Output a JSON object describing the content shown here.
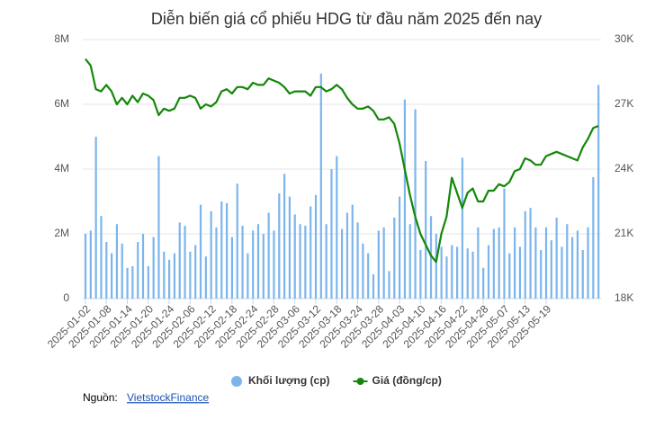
{
  "chart_data": {
    "type": "bar-line",
    "title": "Diễn biến giá cổ phiếu HDG từ đầu năm 2025 đến nay",
    "categories": [
      "2025-01-02",
      null,
      null,
      null,
      "2025-01-08",
      null,
      null,
      null,
      "2025-01-14",
      null,
      null,
      null,
      "2025-01-20",
      null,
      null,
      null,
      "2025-01-24",
      null,
      null,
      null,
      "2025-02-06",
      null,
      null,
      null,
      "2025-02-12",
      null,
      null,
      null,
      "2025-02-18",
      null,
      null,
      null,
      "2025-02-24",
      null,
      null,
      null,
      "2025-02-28",
      null,
      null,
      null,
      "2025-03-06",
      null,
      null,
      null,
      "2025-03-12",
      null,
      null,
      null,
      "2025-03-18",
      null,
      null,
      null,
      "2025-03-24",
      null,
      null,
      null,
      "2025-03-28",
      null,
      null,
      null,
      "2025-04-03",
      null,
      null,
      null,
      "2025-04-10",
      null,
      null,
      null,
      "2025-04-16",
      null,
      null,
      null,
      "2025-04-22",
      null,
      null,
      null,
      "2025-04-28",
      null,
      null,
      null,
      "2025-05-07",
      null,
      null,
      null,
      "2025-05-13",
      null,
      null,
      null,
      "2025-05-19",
      null,
      null,
      null,
      null,
      null,
      null,
      null,
      null,
      null,
      null
    ],
    "series": [
      {
        "name": "Khối lượng (cp)",
        "color": "#7cb5ec",
        "kind": "bar",
        "axis": "y",
        "values": [
          2000000,
          2100000,
          5000000,
          2550000,
          1750000,
          1400000,
          2300000,
          1700000,
          950000,
          1000000,
          1750000,
          2000000,
          1000000,
          1900000,
          4400000,
          1450000,
          1200000,
          1400000,
          2350000,
          2250000,
          1450000,
          1650000,
          2900000,
          1300000,
          2700000,
          2200000,
          3000000,
          2950000,
          1900000,
          3550000,
          2250000,
          1400000,
          2100000,
          2300000,
          2000000,
          2650000,
          2100000,
          3250000,
          3850000,
          3150000,
          2600000,
          2300000,
          2250000,
          2850000,
          3200000,
          6950000,
          2300000,
          4000000,
          4400000,
          2150000,
          2650000,
          2900000,
          2350000,
          1700000,
          1400000,
          750000,
          2100000,
          2200000,
          850000,
          2500000,
          3150000,
          6150000,
          2300000,
          5850000,
          1500000,
          4250000,
          2550000,
          2000000,
          1600000,
          1300000,
          1650000,
          1600000,
          4350000,
          1550000,
          1450000,
          2200000,
          950000,
          1650000,
          2150000,
          2200000,
          3400000,
          1400000,
          2200000,
          1600000,
          2700000,
          2800000,
          2200000,
          1500000,
          2200000,
          1800000,
          2500000,
          1600000,
          2300000,
          1900000,
          2100000,
          1500000,
          2200000,
          3750000,
          6600000
        ]
      },
      {
        "name": "Giá (đồng/cp)",
        "color": "#138808",
        "kind": "line",
        "axis": "y2",
        "values": [
          29100,
          28800,
          27700,
          27600,
          27900,
          27600,
          27000,
          27300,
          27000,
          27400,
          27100,
          27500,
          27400,
          27200,
          26500,
          26800,
          26700,
          26800,
          27300,
          27300,
          27400,
          27300,
          26800,
          27000,
          26900,
          27100,
          27600,
          27700,
          27500,
          27800,
          27800,
          27700,
          28000,
          27900,
          27900,
          28200,
          28100,
          28000,
          27800,
          27500,
          27600,
          27600,
          27600,
          27400,
          27800,
          27800,
          27600,
          27700,
          27900,
          27700,
          27300,
          27000,
          26800,
          26800,
          26900,
          26700,
          26300,
          26300,
          26400,
          26100,
          25200,
          24000,
          22800,
          21800,
          21000,
          20500,
          20000,
          19700,
          21000,
          21800,
          23600,
          22900,
          22200,
          22900,
          23100,
          22500,
          22500,
          23000,
          23000,
          23300,
          23200,
          23400,
          23900,
          24000,
          24500,
          24400,
          24200,
          24200,
          24600,
          24700,
          24800,
          24700,
          24600,
          24500,
          24400,
          25000,
          25400,
          25900,
          26000
        ]
      }
    ],
    "ylim": [
      0,
      8000000
    ],
    "yticks": [
      0,
      {
        "value": 2000000,
        "label": "2M"
      },
      {
        "value": 4000000,
        "label": "4M"
      },
      {
        "value": 6000000,
        "label": "6M"
      },
      {
        "value": 8000000,
        "label": "8M"
      }
    ],
    "y2lim": [
      18000,
      30000
    ],
    "y2ticks": [
      {
        "value": 18000,
        "label": "18K"
      },
      {
        "value": 21000,
        "label": "21K"
      },
      {
        "value": 24000,
        "label": "24K"
      },
      {
        "value": 27000,
        "label": "27K"
      },
      {
        "value": 30000,
        "label": "30K"
      }
    ],
    "grid": true,
    "legend": "bottom"
  },
  "source": {
    "label": "Nguồn:",
    "link": "VietstockFinance"
  }
}
